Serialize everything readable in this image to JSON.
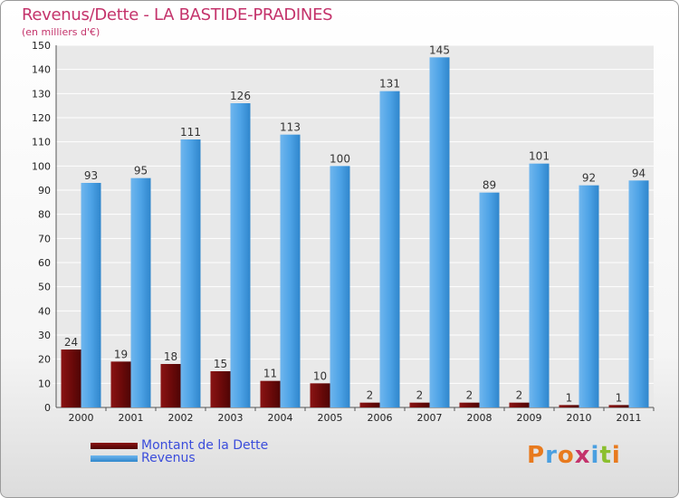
{
  "header": {
    "title": "Revenus/Dette - LA BASTIDE-PRADINES",
    "subtitle": "(en milliers d'€)"
  },
  "chart_data": {
    "type": "bar",
    "categories": [
      "2000",
      "2001",
      "2002",
      "2003",
      "2004",
      "2005",
      "2006",
      "2007",
      "2008",
      "2009",
      "2010",
      "2011"
    ],
    "series": [
      {
        "name": "Montant de la Dette",
        "color": "#7a0a0a",
        "values": [
          24,
          19,
          18,
          15,
          11,
          10,
          2,
          2,
          2,
          2,
          1,
          1
        ]
      },
      {
        "name": "Revenus",
        "color": "#4a9fe0",
        "values": [
          93,
          95,
          111,
          126,
          113,
          100,
          131,
          145,
          89,
          101,
          92,
          94
        ]
      }
    ],
    "ylim": [
      0,
      150
    ],
    "yticks": [
      0,
      10,
      20,
      30,
      40,
      50,
      60,
      70,
      80,
      90,
      100,
      110,
      120,
      130,
      140,
      150
    ],
    "grid": true,
    "legend_position": "bottom-left"
  },
  "legend": {
    "items": [
      {
        "label": "Montant de la Dette",
        "color": "#6b0a0a"
      },
      {
        "label": "Revenus",
        "color": "#4a9fe0"
      }
    ]
  },
  "logo": {
    "letters": [
      "P",
      "r",
      "o",
      "x",
      "i",
      "t",
      "i"
    ],
    "colors": [
      "#e87a1e",
      "#4a9fe0",
      "#e87a1e",
      "#c4336b",
      "#4a9fe0",
      "#8bbf2e",
      "#e87a1e"
    ]
  }
}
